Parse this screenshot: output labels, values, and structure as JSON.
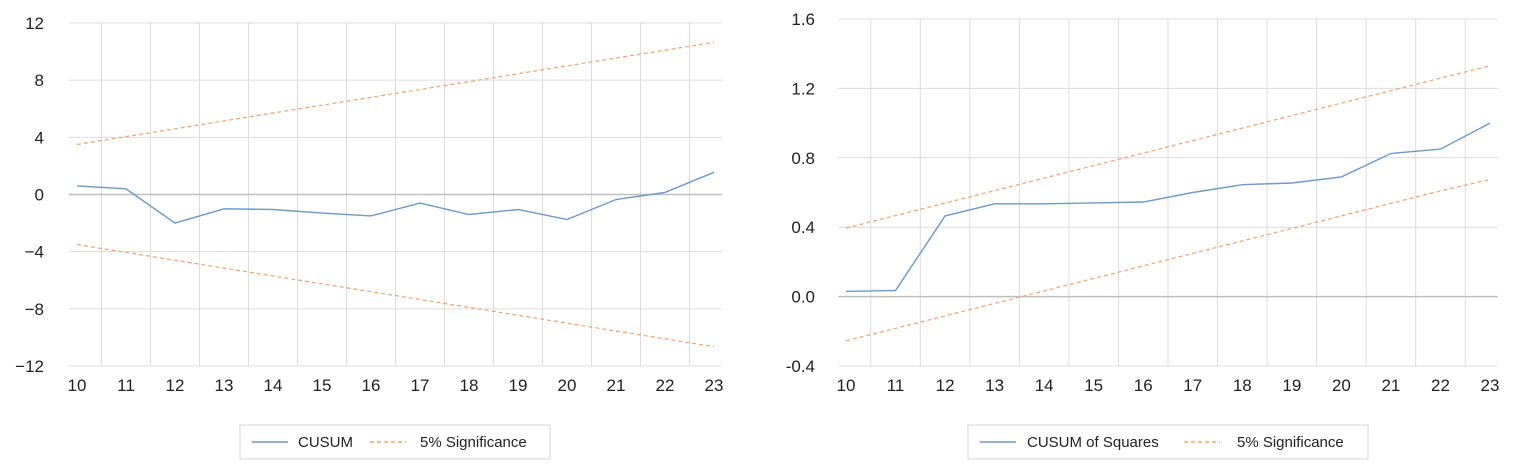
{
  "colors": {
    "series": "#6d98c8",
    "band": "#f2a06d",
    "grid": "#dcdcdc",
    "axis_zero": "#bfbfbf",
    "text": "#222222",
    "legend_border": "#d4d4d4"
  },
  "chart_data": [
    {
      "type": "line",
      "title": "",
      "xlabel": "",
      "ylabel": "",
      "x": [
        10,
        11,
        12,
        13,
        14,
        15,
        16,
        17,
        18,
        19,
        20,
        21,
        22,
        23
      ],
      "x_ticks": [
        "10",
        "11",
        "12",
        "13",
        "14",
        "15",
        "16",
        "17",
        "18",
        "19",
        "20",
        "21",
        "22",
        "23"
      ],
      "ylim": [
        -12,
        12
      ],
      "y_ticks": [
        "−12",
        "−8",
        "−4",
        "0",
        "4",
        "8",
        "12"
      ],
      "y_tick_values": [
        -12,
        -8,
        -4,
        0,
        4,
        8,
        12
      ],
      "grid": true,
      "legend_position": "bottom",
      "series": [
        {
          "name": "CUSUM",
          "style": "solid",
          "values": [
            0.6,
            0.4,
            -2.0,
            -1.0,
            -1.05,
            -1.3,
            -1.5,
            -0.6,
            -1.4,
            -1.05,
            -1.75,
            -0.35,
            0.15,
            1.55
          ]
        },
        {
          "name": "5% Significance",
          "style": "dashed",
          "values": [
            3.5,
            4.05,
            4.6,
            5.15,
            5.7,
            6.25,
            6.8,
            7.35,
            7.9,
            8.45,
            9.0,
            9.55,
            10.1,
            10.65
          ]
        },
        {
          "name": "",
          "style": "dashed",
          "values": [
            -3.5,
            -4.05,
            -4.6,
            -5.15,
            -5.7,
            -6.25,
            -6.8,
            -7.35,
            -7.9,
            -8.45,
            -9.0,
            -9.55,
            -10.1,
            -10.65
          ]
        }
      ],
      "legend": [
        "CUSUM",
        "5% Significance"
      ]
    },
    {
      "type": "line",
      "title": "",
      "xlabel": "",
      "ylabel": "",
      "x": [
        10,
        11,
        12,
        13,
        14,
        15,
        16,
        17,
        18,
        19,
        20,
        21,
        22,
        23
      ],
      "x_ticks": [
        "10",
        "11",
        "12",
        "13",
        "14",
        "15",
        "16",
        "17",
        "18",
        "19",
        "20",
        "21",
        "22",
        "23"
      ],
      "ylim": [
        -0.4,
        1.6
      ],
      "y_ticks": [
        "-0.4",
        "0.0",
        "0.4",
        "0.8",
        "1.2",
        "1.6"
      ],
      "y_tick_values": [
        -0.4,
        0.0,
        0.4,
        0.8,
        1.2,
        1.6
      ],
      "grid": true,
      "legend_position": "bottom",
      "series": [
        {
          "name": "CUSUM of Squares",
          "style": "solid",
          "values": [
            0.03,
            0.035,
            0.465,
            0.535,
            0.535,
            0.54,
            0.545,
            0.6,
            0.645,
            0.655,
            0.69,
            0.825,
            0.85,
            1.0
          ]
        },
        {
          "name": "5% Significance",
          "style": "dashed",
          "values": [
            0.395,
            0.467,
            0.539,
            0.611,
            0.683,
            0.755,
            0.827,
            0.899,
            0.971,
            1.043,
            1.115,
            1.187,
            1.259,
            1.33
          ]
        },
        {
          "name": "",
          "style": "dashed",
          "values": [
            -0.255,
            -0.183,
            -0.111,
            -0.039,
            0.033,
            0.105,
            0.177,
            0.249,
            0.321,
            0.393,
            0.465,
            0.537,
            0.609,
            0.675
          ]
        }
      ],
      "legend": [
        "CUSUM of Squares",
        "5% Significance"
      ]
    }
  ]
}
